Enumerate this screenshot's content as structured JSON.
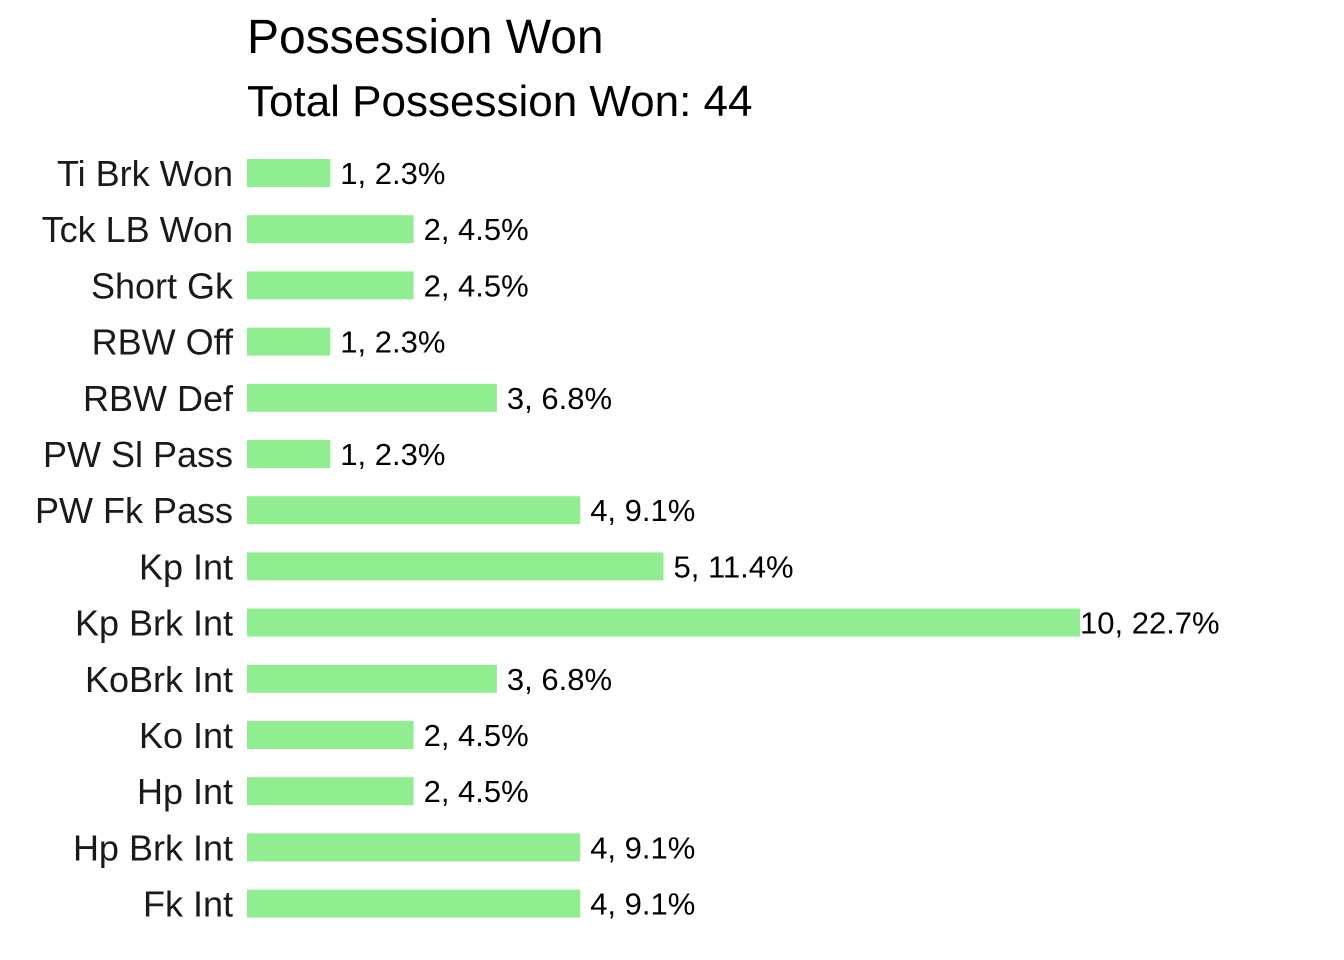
{
  "chart_data": {
    "type": "bar",
    "orientation": "horizontal",
    "title": "Possession Won",
    "subtitle": "Total Possession Won: 44",
    "categories": [
      "Ti Brk Won",
      "Tck LB Won",
      "Short Gk",
      "RBW Off",
      "RBW Def",
      "PW Sl Pass",
      "PW Fk Pass",
      "Kp Int",
      "Kp Brk Int",
      "KoBrk Int",
      "Ko Int",
      "Hp Int",
      "Hp Brk Int",
      "Fk Int"
    ],
    "values": [
      1,
      2,
      2,
      1,
      3,
      1,
      4,
      5,
      10,
      3,
      2,
      2,
      4,
      4
    ],
    "data_labels": [
      "1, 2.3%",
      "2, 4.5%",
      "2, 4.5%",
      "1, 2.3%",
      "3, 6.8%",
      "1, 2.3%",
      "4, 9.1%",
      "5, 11.4%",
      "10, 22.7%",
      "3, 6.8%",
      "2, 4.5%",
      "2, 4.5%",
      "4, 9.1%",
      "4, 9.1%"
    ],
    "xlim": [
      0,
      10
    ],
    "grid": false,
    "bar_color": "#90EE90"
  }
}
